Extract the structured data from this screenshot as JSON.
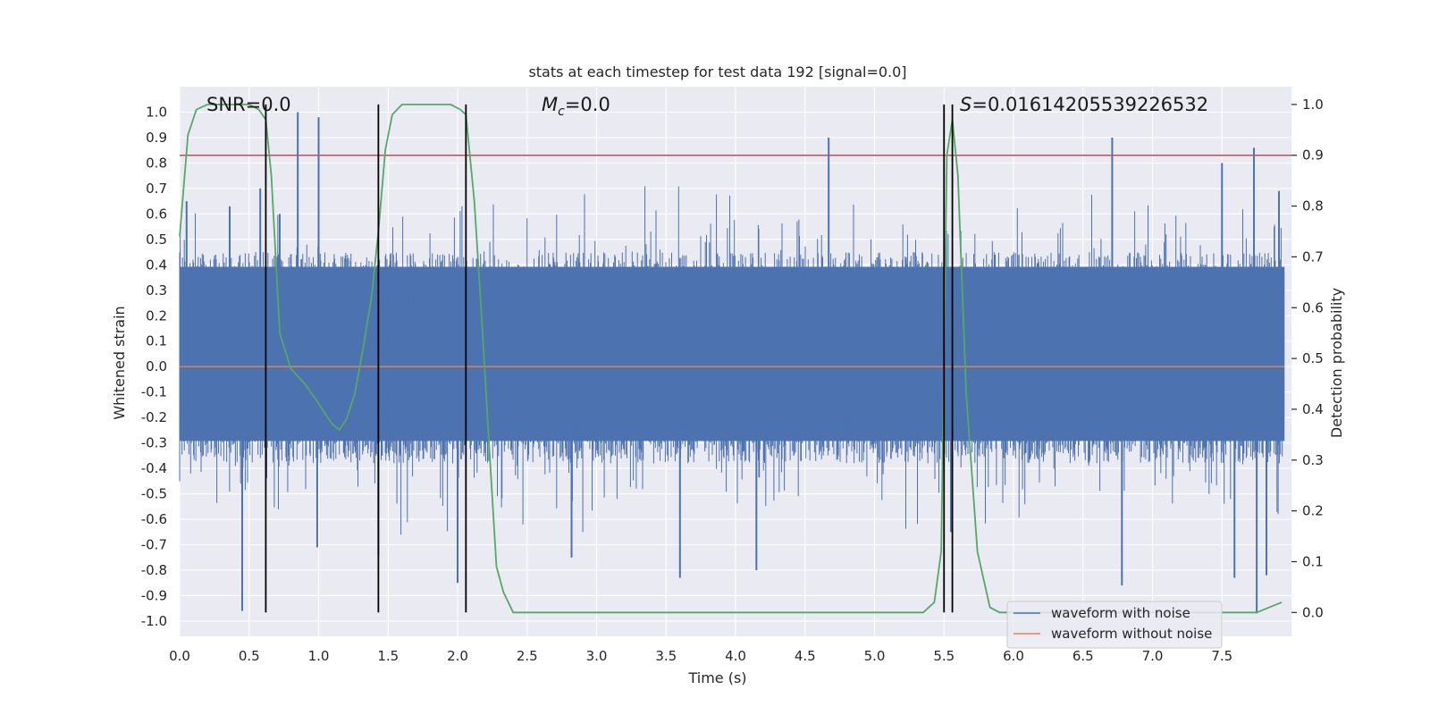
{
  "chart_data": {
    "type": "line",
    "title": "stats at each timestep for test data 192 [signal=0.0]",
    "xlabel": "Time (s)",
    "ylabel_left": "Whitened strain",
    "ylabel_right": "Detection probability",
    "xlim": [
      0.0,
      8.0
    ],
    "ylim_left": [
      -1.06,
      1.1
    ],
    "ylim_right": [
      -0.047,
      1.035
    ],
    "x_ticks": [
      "0.0",
      "0.5",
      "1.0",
      "1.5",
      "2.0",
      "2.5",
      "3.0",
      "3.5",
      "4.0",
      "4.5",
      "5.0",
      "5.5",
      "6.0",
      "6.5",
      "7.0",
      "7.5"
    ],
    "x_tick_values": [
      0.0,
      0.5,
      1.0,
      1.5,
      2.0,
      2.5,
      3.0,
      3.5,
      4.0,
      4.5,
      5.0,
      5.5,
      6.0,
      6.5,
      7.0,
      7.5
    ],
    "y_left_ticks": [
      "1.0",
      "0.9",
      "0.8",
      "0.7",
      "0.6",
      "0.5",
      "0.4",
      "0.3",
      "0.2",
      "0.1",
      "0.0",
      "-0.1",
      "-0.2",
      "-0.3",
      "-0.4",
      "-0.5",
      "-0.6",
      "-0.7",
      "-0.8",
      "-0.9",
      "-1.0"
    ],
    "y_left_tick_values": [
      1.0,
      0.9,
      0.8,
      0.7,
      0.6,
      0.5,
      0.4,
      0.3,
      0.2,
      0.1,
      0.0,
      -0.1,
      -0.2,
      -0.3,
      -0.4,
      -0.5,
      -0.6,
      -0.7,
      -0.8,
      -0.9,
      -1.0
    ],
    "y_right_ticks": [
      "1.0",
      "0.9",
      "0.8",
      "0.7",
      "0.6",
      "0.5",
      "0.4",
      "0.3",
      "0.2",
      "0.1",
      "0.0"
    ],
    "y_right_tick_values": [
      1.0,
      0.9,
      0.8,
      0.7,
      0.6,
      0.5,
      0.4,
      0.3,
      0.2,
      0.1,
      0.0
    ],
    "annotations": {
      "snr": "SNR=0.0",
      "mc_symbol": "M",
      "mc_sub": "c",
      "mc_value": "=0.0",
      "s_symbol": "S",
      "s_value": "=0.01614205539226532"
    },
    "threshold": {
      "value": 0.9,
      "axis": "right",
      "color": "#c44e52"
    },
    "vertical_lines_x": [
      0.62,
      1.43,
      2.06,
      5.5,
      5.56
    ],
    "series": [
      {
        "name": "waveform with noise",
        "axis": "left",
        "color": "#4c72b0",
        "kind": "noise",
        "typical_band": [
          -0.4,
          0.5
        ],
        "spike_peaks": [
          {
            "x": 0.05,
            "y": 0.65
          },
          {
            "x": 0.36,
            "y": 0.63
          },
          {
            "x": 0.45,
            "y": -0.96
          },
          {
            "x": 0.58,
            "y": 0.7
          },
          {
            "x": 0.72,
            "y": 0.6
          },
          {
            "x": 0.85,
            "y": 1.0
          },
          {
            "x": 0.99,
            "y": -0.71
          },
          {
            "x": 1.0,
            "y": 0.98
          },
          {
            "x": 1.43,
            "y": -0.74
          },
          {
            "x": 2.0,
            "y": -0.85
          },
          {
            "x": 2.82,
            "y": -0.75
          },
          {
            "x": 3.6,
            "y": -0.83
          },
          {
            "x": 4.15,
            "y": -0.8
          },
          {
            "x": 4.67,
            "y": 0.9
          },
          {
            "x": 5.55,
            "y": -0.65
          },
          {
            "x": 6.71,
            "y": 0.9
          },
          {
            "x": 6.78,
            "y": -0.86
          },
          {
            "x": 7.5,
            "y": 0.8
          },
          {
            "x": 7.59,
            "y": -0.83
          },
          {
            "x": 7.73,
            "y": 0.86
          },
          {
            "x": 7.75,
            "y": -0.97
          },
          {
            "x": 7.82,
            "y": -0.82
          },
          {
            "x": 7.91,
            "y": 0.69
          }
        ]
      },
      {
        "name": "waveform without noise",
        "axis": "left",
        "color": "#dd8452",
        "x": [
          0.0,
          7.95
        ],
        "y": [
          0.0,
          0.0
        ]
      },
      {
        "name": "detection probability",
        "axis": "right",
        "color": "#55a868",
        "x": [
          0.0,
          0.06,
          0.12,
          0.2,
          0.3,
          0.4,
          0.5,
          0.57,
          0.62,
          0.66,
          0.72,
          0.8,
          0.9,
          0.98,
          1.05,
          1.1,
          1.15,
          1.2,
          1.26,
          1.32,
          1.38,
          1.43,
          1.48,
          1.53,
          1.6,
          1.8,
          1.95,
          2.02,
          2.06,
          2.12,
          2.18,
          2.22,
          2.28,
          2.33,
          2.4,
          3.0,
          3.5,
          4.0,
          4.5,
          4.8,
          4.95,
          5.05,
          5.35,
          5.43,
          5.48,
          5.52,
          5.56,
          5.6,
          5.66,
          5.74,
          5.83,
          5.9,
          6.0,
          6.5,
          7.0,
          7.5,
          7.75,
          7.84,
          7.93
        ],
        "y": [
          0.74,
          0.94,
          0.99,
          1.0,
          1.0,
          1.0,
          1.0,
          0.99,
          0.97,
          0.86,
          0.55,
          0.48,
          0.45,
          0.42,
          0.39,
          0.37,
          0.36,
          0.38,
          0.43,
          0.52,
          0.62,
          0.75,
          0.91,
          0.98,
          1.0,
          1.0,
          1.0,
          0.99,
          0.98,
          0.81,
          0.55,
          0.36,
          0.09,
          0.04,
          0.0,
          0.0,
          0.0,
          0.0,
          0.0,
          0.0,
          0.0,
          0.0,
          0.0,
          0.02,
          0.12,
          0.9,
          0.97,
          0.86,
          0.43,
          0.12,
          0.01,
          0.0,
          0.0,
          0.0,
          0.0,
          0.0,
          0.0,
          0.01,
          0.02
        ]
      }
    ],
    "legend": {
      "position": "lower-right",
      "entries": [
        {
          "label": "waveform with noise",
          "color": "#4c72b0"
        },
        {
          "label": "waveform without noise",
          "color": "#dd8452"
        }
      ]
    },
    "colors": {
      "plot_background": "#eaeaf2",
      "grid": "#ffffff",
      "vline": "#000000"
    }
  }
}
